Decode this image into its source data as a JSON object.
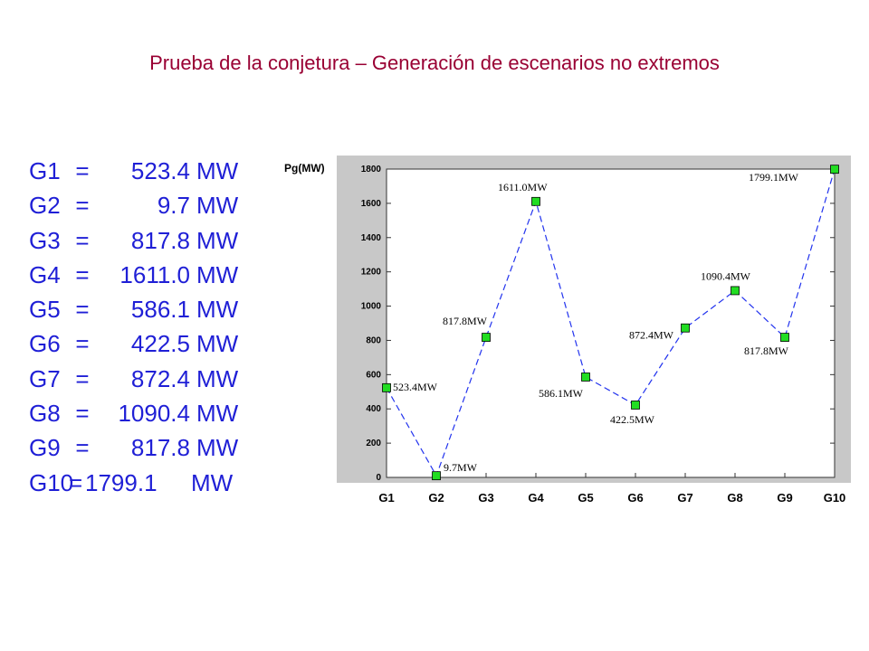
{
  "title": "Prueba de la conjetura – Generación de escenarios no extremos",
  "generators": [
    {
      "name": "G1",
      "eq": "=",
      "value": "523.4",
      "unit": "MW"
    },
    {
      "name": "G2",
      "eq": "=",
      "value": "9.7",
      "unit": "MW"
    },
    {
      "name": "G3",
      "eq": "=",
      "value": "817.8",
      "unit": "MW"
    },
    {
      "name": "G4",
      "eq": "=",
      "value": "1611.0",
      "unit": "MW"
    },
    {
      "name": "G5",
      "eq": "=",
      "value": "586.1",
      "unit": "MW"
    },
    {
      "name": "G6",
      "eq": "=",
      "value": "422.5",
      "unit": "MW"
    },
    {
      "name": "G7",
      "eq": "=",
      "value": "872.4",
      "unit": "MW"
    },
    {
      "name": "G8",
      "eq": "=",
      "value": "1090.4",
      "unit": "MW"
    },
    {
      "name": "G9",
      "eq": "=",
      "value": "817.8",
      "unit": "MW"
    },
    {
      "name": "G10",
      "eq": "=",
      "value": "1799.1",
      "unit": "MW"
    }
  ],
  "chart_data": {
    "type": "line",
    "ylabel": "Pg(MW)",
    "xlabel": "",
    "categories": [
      "G1",
      "G2",
      "G3",
      "G4",
      "G5",
      "G6",
      "G7",
      "G8",
      "G9",
      "G10"
    ],
    "values": [
      523.4,
      9.7,
      817.8,
      1611.0,
      586.1,
      422.5,
      872.4,
      1090.4,
      817.8,
      1799.1
    ],
    "point_labels": [
      "523.4MW",
      "9.7MW",
      "817.8MW",
      "1611.0MW",
      "586.1MW",
      "422.5MW",
      "872.4MW",
      "1090.4MW",
      "817.8MW",
      "1799.1MW"
    ],
    "ylim": [
      0,
      1800
    ],
    "yticks": [
      0,
      200,
      400,
      600,
      800,
      1000,
      1200,
      1400,
      1600,
      1800
    ],
    "grid": false,
    "line_color": "#2233ee",
    "line_style": "dashed",
    "marker_color": "#22dd22",
    "background_color": "#c8c8c8"
  }
}
